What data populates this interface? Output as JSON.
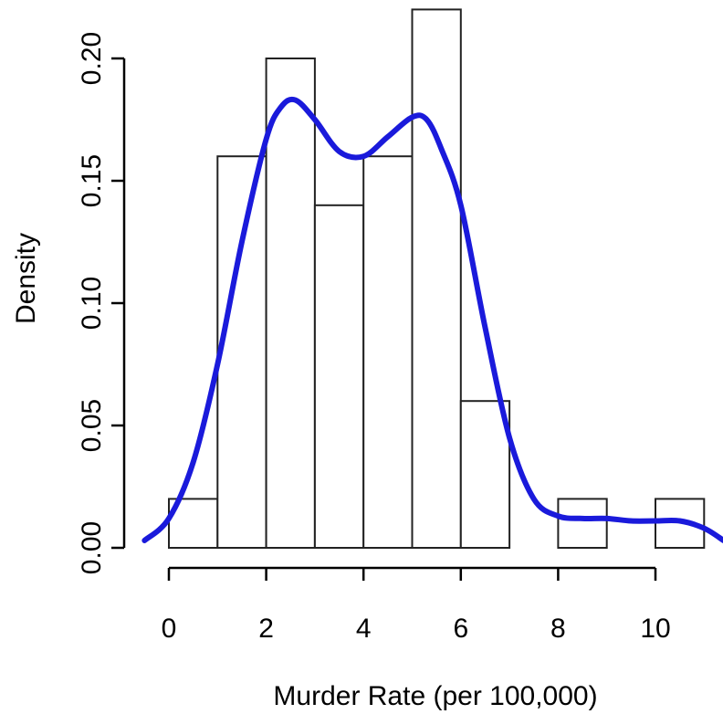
{
  "chart_data": {
    "type": "bar",
    "subtype": "histogram-with-density-curve",
    "title": "",
    "xlabel": "Murder Rate (per 100,000)",
    "ylabel": "Density",
    "xlim": [
      -0.5,
      11.4
    ],
    "ylim": [
      0,
      0.22
    ],
    "grid": false,
    "x_ticks": [
      0,
      2,
      4,
      6,
      8,
      10
    ],
    "y_ticks": [
      0.0,
      0.05,
      0.1,
      0.15,
      0.2
    ],
    "y_tick_labels": [
      "0.00",
      "0.05",
      "0.10",
      "0.15",
      "0.20"
    ],
    "bins": [
      {
        "x0": 0,
        "x1": 1,
        "density": 0.02
      },
      {
        "x0": 1,
        "x1": 2,
        "density": 0.16
      },
      {
        "x0": 2,
        "x1": 3,
        "density": 0.2
      },
      {
        "x0": 3,
        "x1": 4,
        "density": 0.14
      },
      {
        "x0": 4,
        "x1": 5,
        "density": 0.16
      },
      {
        "x0": 5,
        "x1": 6,
        "density": 0.22
      },
      {
        "x0": 6,
        "x1": 7,
        "density": 0.06
      },
      {
        "x0": 7,
        "x1": 8,
        "density": 0.0
      },
      {
        "x0": 8,
        "x1": 9,
        "density": 0.02
      },
      {
        "x0": 9,
        "x1": 10,
        "density": 0.0
      },
      {
        "x0": 10,
        "x1": 11,
        "density": 0.02
      }
    ],
    "density_curve": {
      "color": "#1a1adb",
      "x": [
        -0.5,
        0,
        0.5,
        1,
        1.5,
        2,
        2.3,
        2.6,
        3,
        3.5,
        4,
        4.5,
        5,
        5.3,
        5.6,
        6,
        6.5,
        7,
        7.5,
        8,
        8.5,
        9,
        9.5,
        10,
        10.5,
        11,
        11.4
      ],
      "y": [
        0.003,
        0.012,
        0.035,
        0.075,
        0.125,
        0.167,
        0.18,
        0.183,
        0.175,
        0.162,
        0.16,
        0.168,
        0.176,
        0.175,
        0.163,
        0.14,
        0.09,
        0.045,
        0.02,
        0.013,
        0.012,
        0.012,
        0.011,
        0.011,
        0.011,
        0.008,
        0.003
      ]
    }
  }
}
